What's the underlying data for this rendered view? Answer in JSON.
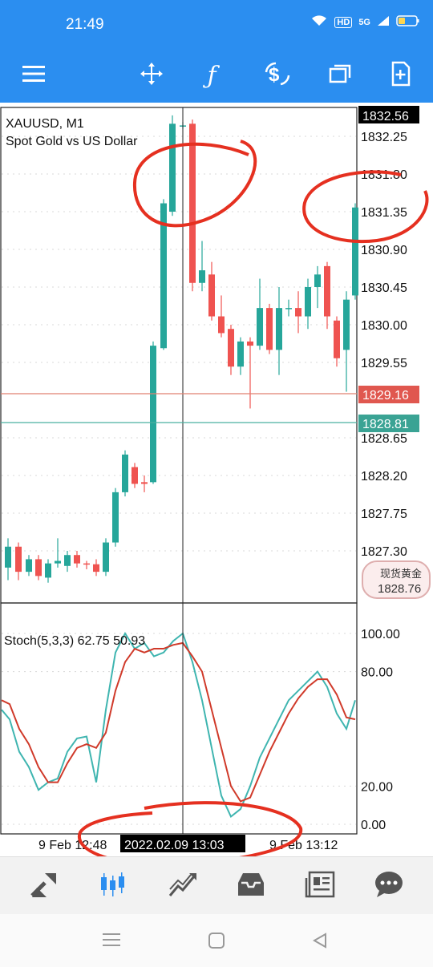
{
  "status_bar": {
    "time": "21:49",
    "network": "5G",
    "hd": "HD"
  },
  "toolbar": {
    "buttons": [
      "menu-icon",
      "crosshair-icon",
      "indicator-icon",
      "trade-icon",
      "windows-icon",
      "add-object-icon"
    ]
  },
  "chart": {
    "symbol": "XAUUSD, M1",
    "description": "Spot Gold vs US Dollar",
    "current_price_label": "1832.56",
    "red_line_label": "1829.16",
    "green_line_label": "1828.81",
    "overlay_label_cn": "现货黄金",
    "overlay_label_price": "1828.76",
    "y_ticks": [
      "1832.25",
      "1831.80",
      "1831.35",
      "1830.90",
      "1830.45",
      "1830.00",
      "1829.55",
      "1828.65",
      "1828.20",
      "1827.75",
      "1827.30"
    ],
    "stoch_label": "Stoch(5,3,3) 62.75 50.93",
    "stoch_ticks": [
      "100.00",
      "80.00",
      "20.00",
      "0.00"
    ],
    "x_labels": [
      "9 Feb 12:48",
      "2022.02.09 13:03",
      "9 Feb 13:12"
    ]
  },
  "bottom_nav": [
    "quotes-icon",
    "charts-icon",
    "trade-icon",
    "history-icon",
    "news-icon",
    "chat-icon"
  ],
  "colors": {
    "bull": "#26a69a",
    "bear": "#ef5350",
    "accent": "#2b8ef0",
    "annotation": "#e53020"
  }
}
